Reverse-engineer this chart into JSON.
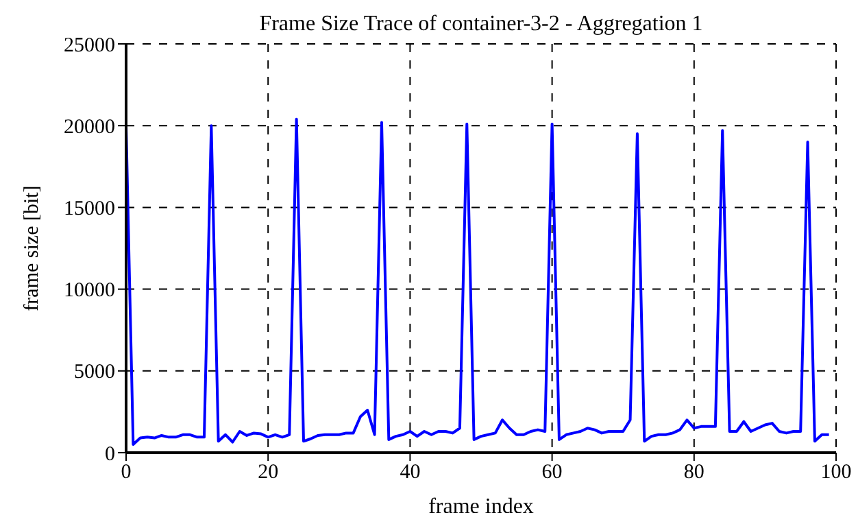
{
  "chart_data": {
    "type": "line",
    "title": "Frame Size Trace of container-3-2 - Aggregation 1",
    "xlabel": "frame index",
    "ylabel": "frame size [bit]",
    "x": [
      0,
      1,
      2,
      3,
      4,
      5,
      6,
      7,
      8,
      9,
      10,
      11,
      12,
      13,
      14,
      15,
      16,
      17,
      18,
      19,
      20,
      21,
      22,
      23,
      24,
      25,
      26,
      27,
      28,
      29,
      30,
      31,
      32,
      33,
      34,
      35,
      36,
      37,
      38,
      39,
      40,
      41,
      42,
      43,
      44,
      45,
      46,
      47,
      48,
      49,
      50,
      51,
      52,
      53,
      54,
      55,
      56,
      57,
      58,
      59,
      60,
      61,
      62,
      63,
      64,
      65,
      66,
      67,
      68,
      69,
      70,
      71,
      72,
      73,
      74,
      75,
      76,
      77,
      78,
      79,
      80,
      81,
      82,
      83,
      84,
      85,
      86,
      87,
      88,
      89,
      90,
      91,
      92,
      93,
      94,
      95,
      96,
      97,
      98,
      99
    ],
    "series": [
      {
        "color": "#0000ff",
        "values": [
          20000,
          500,
          900,
          950,
          900,
          1050,
          950,
          950,
          1100,
          1100,
          950,
          950,
          20000,
          700,
          1100,
          650,
          1300,
          1050,
          1200,
          1150,
          950,
          1100,
          950,
          1100,
          20400,
          700,
          850,
          1050,
          1100,
          1100,
          1100,
          1200,
          1200,
          2200,
          2600,
          1100,
          20200,
          800,
          1000,
          1100,
          1300,
          1000,
          1300,
          1100,
          1300,
          1300,
          1200,
          1500,
          20100,
          800,
          1000,
          1100,
          1200,
          2000,
          1500,
          1100,
          1100,
          1300,
          1400,
          1300,
          20100,
          800,
          1100,
          1200,
          1300,
          1500,
          1400,
          1200,
          1300,
          1300,
          1300,
          2000,
          19500,
          700,
          1000,
          1100,
          1100,
          1200,
          1400,
          2000,
          1500,
          1600,
          1600,
          1600,
          19700,
          1300,
          1300,
          1900,
          1300,
          1500,
          1700,
          1800,
          1300,
          1200,
          1300,
          1300,
          19000,
          700,
          1100,
          1100
        ]
      }
    ],
    "xlim": [
      0,
      100
    ],
    "xticks": [
      0,
      20,
      40,
      60,
      80,
      100
    ],
    "ylim": [
      0,
      25000
    ],
    "yticks": [
      0,
      5000,
      10000,
      15000,
      20000,
      25000
    ],
    "grid": true,
    "legend": false,
    "marker": "none",
    "line_style": "solid"
  }
}
